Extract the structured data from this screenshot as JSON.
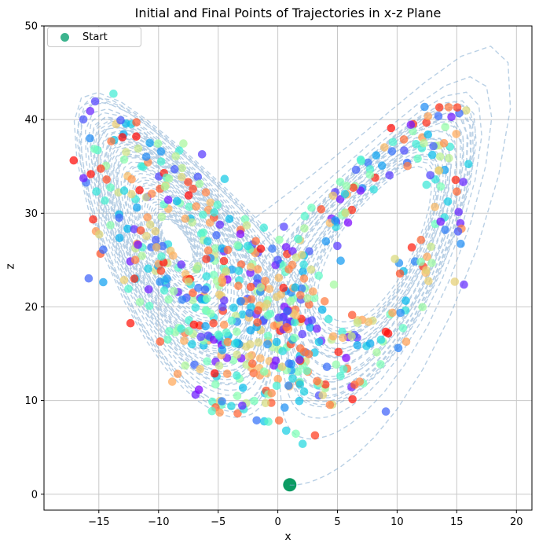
{
  "chart_data": {
    "type": "scatter",
    "title": "Initial and Final Points of Trajectories in x-z Plane",
    "xlabel": "x",
    "ylabel": "z",
    "xlim": [
      -19.6,
      21.3
    ],
    "ylim": [
      -1.7,
      50.0
    ],
    "xticks": [
      -15,
      -10,
      -5,
      0,
      5,
      10,
      15,
      20
    ],
    "yticks": [
      0,
      10,
      20,
      30,
      40,
      50
    ],
    "grid": true,
    "grid_color": "#c8c8c8",
    "spine_color": "#000000",
    "legend": {
      "label": "Start",
      "location": "upper left",
      "marker_color": "#3cb48e"
    },
    "start_point": {
      "x": 1,
      "z": 1,
      "color": "#0c9b63",
      "radius_px": 8.5
    },
    "trajectory": {
      "system": "lorenz",
      "sigma": 10,
      "rho": 28,
      "beta": 2.66667,
      "initial": [
        1,
        1,
        1
      ],
      "dt": 0.01,
      "steps": 6000,
      "color": "#7fa9cf",
      "opacity": 0.55,
      "dash": [
        6,
        4
      ],
      "width": 1.4
    },
    "final_points": {
      "count": 660,
      "seed": 12,
      "index_min": 500,
      "jitter": 1.0,
      "wide_jitter": 3.2,
      "wide_fraction": 0.14,
      "alpha": 0.72,
      "radius_px": 5.3,
      "colormap": "rainbow"
    }
  }
}
